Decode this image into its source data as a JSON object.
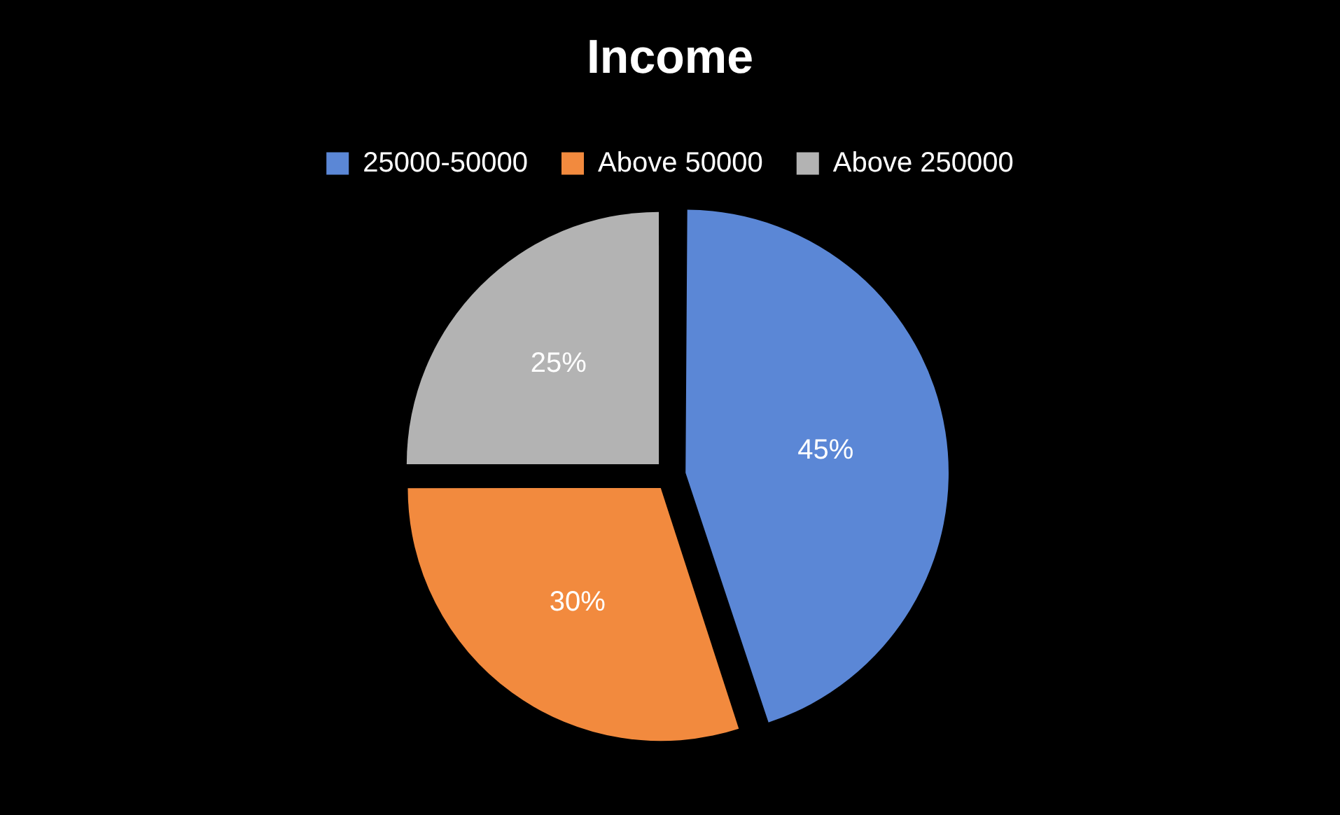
{
  "chart_data": {
    "type": "pie",
    "title": "Income",
    "categories": [
      "25000-50000",
      "Above 50000",
      "Above 250000"
    ],
    "values": [
      45,
      30,
      25
    ],
    "colors": [
      "#5b87d6",
      "#f28a3e",
      "#b3b3b3"
    ],
    "value_labels": [
      "45%",
      "30%",
      "25%"
    ],
    "legend": "top"
  }
}
